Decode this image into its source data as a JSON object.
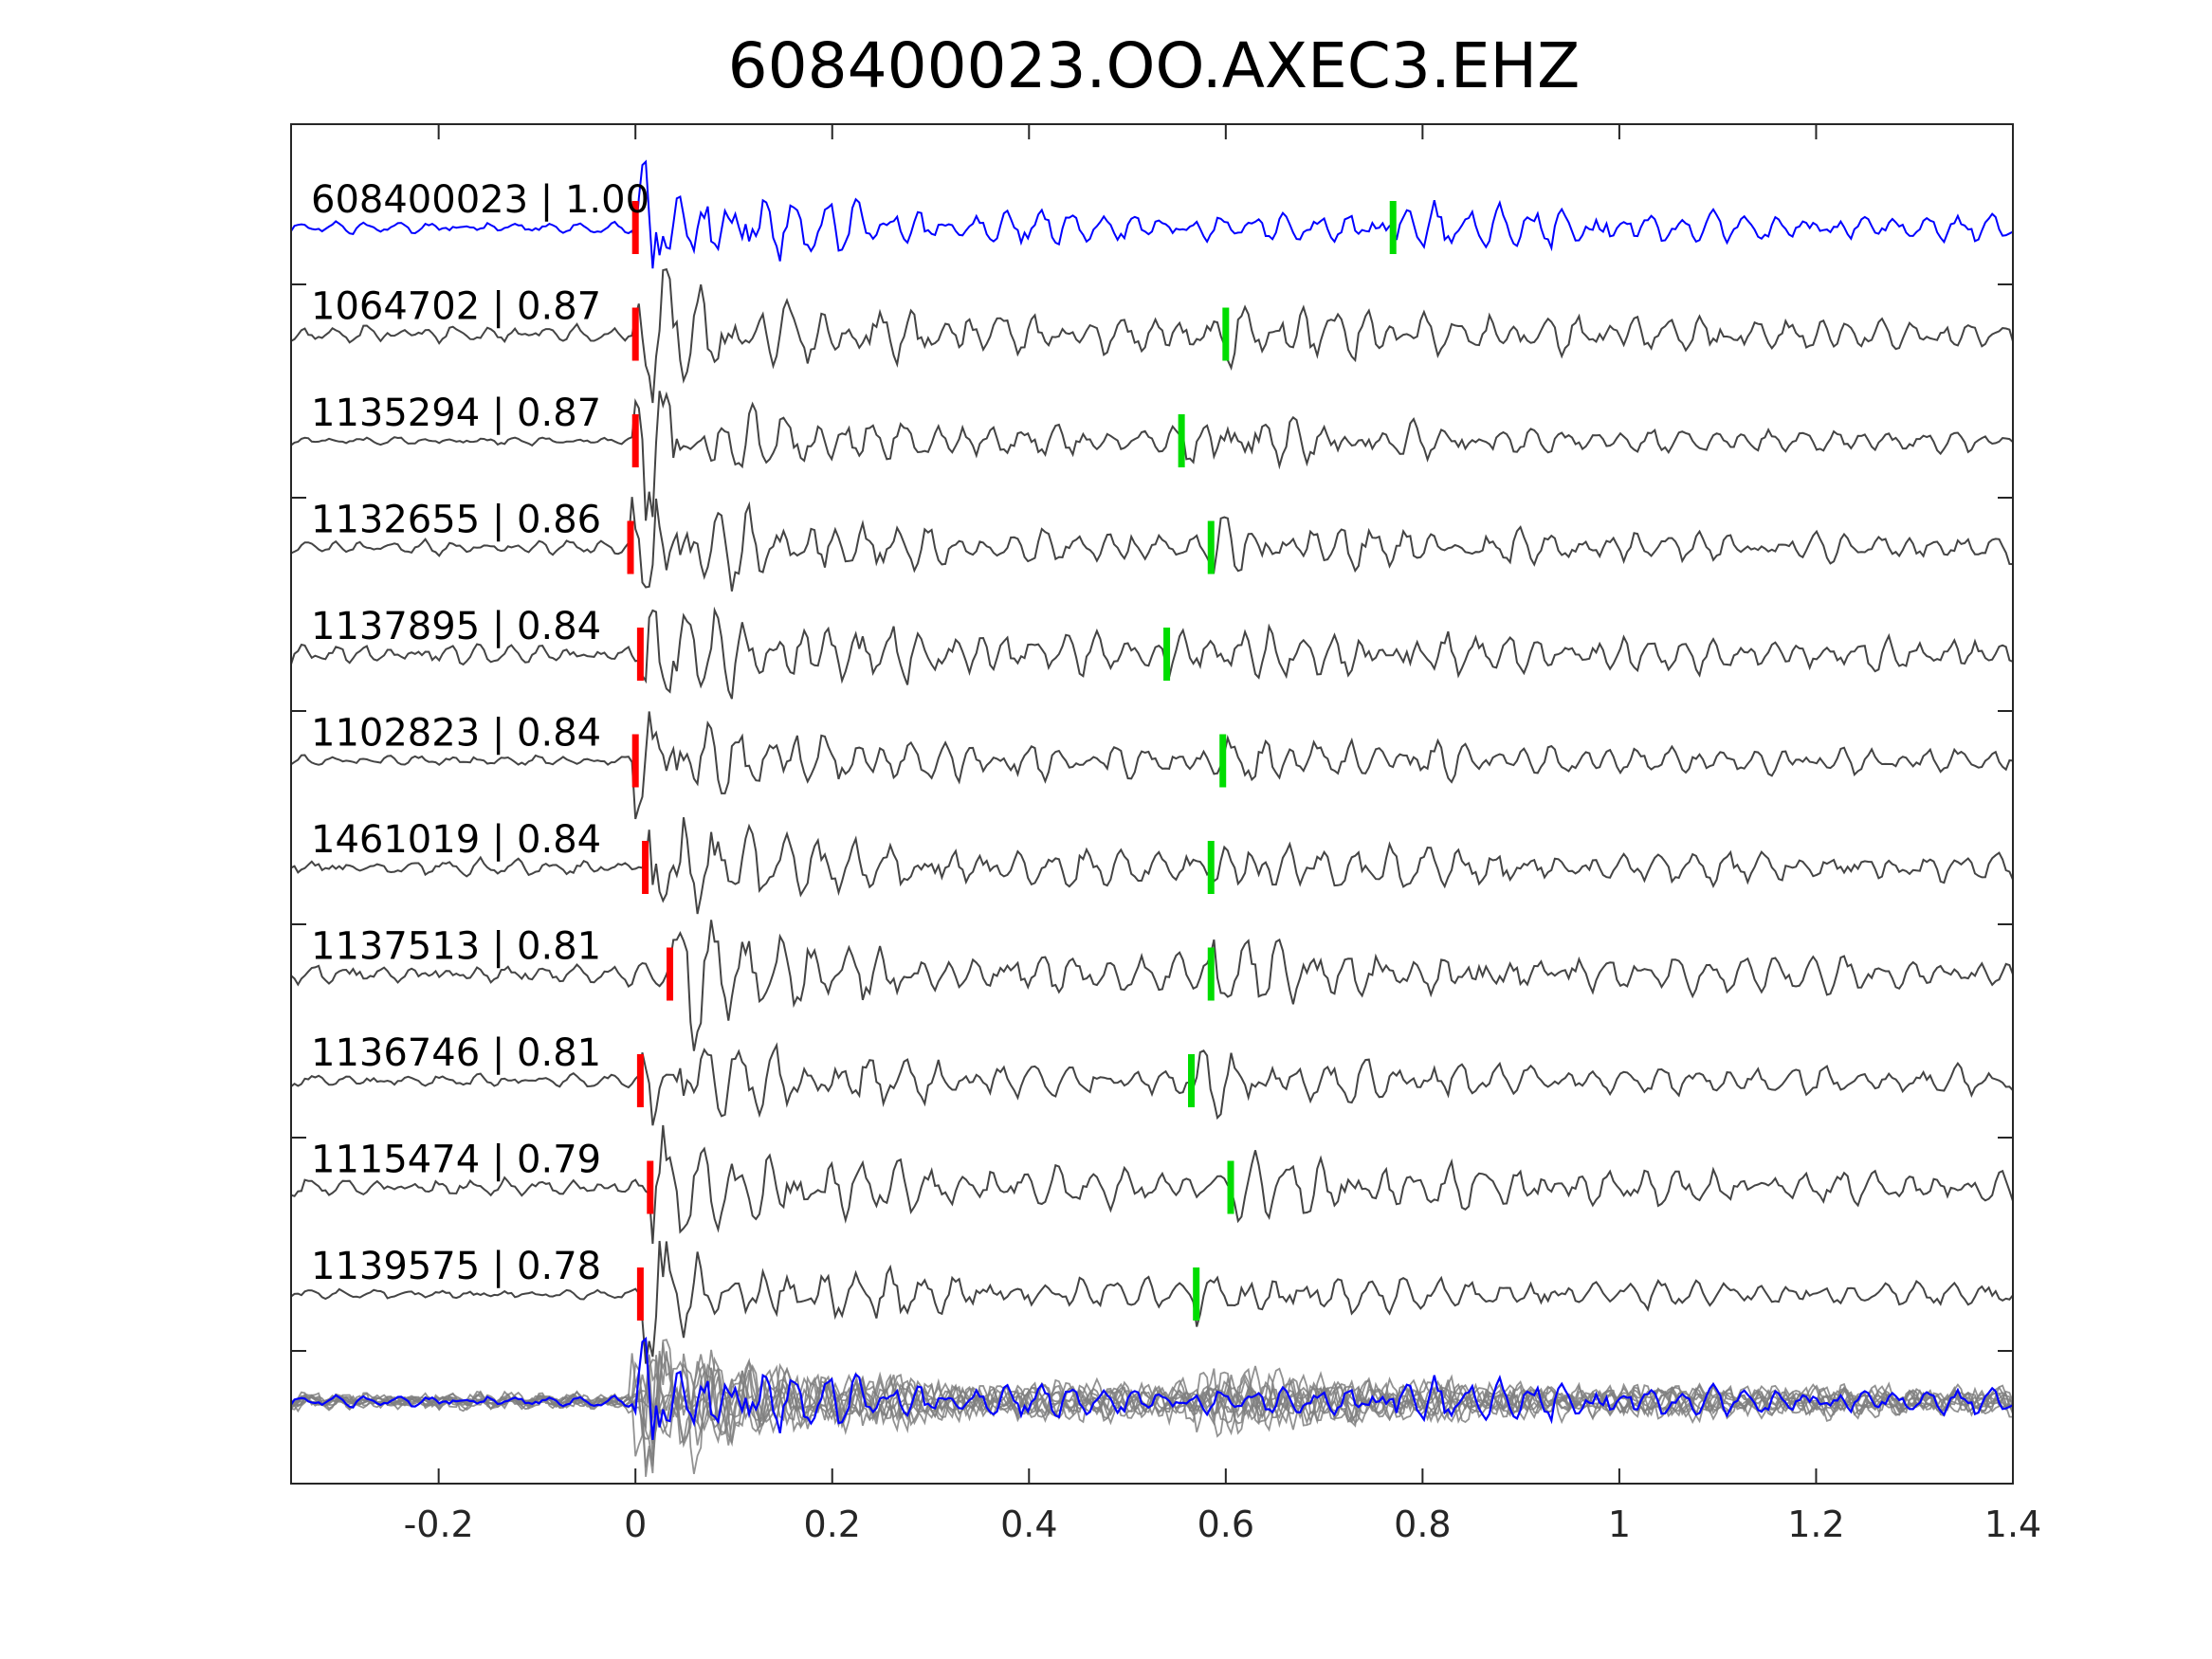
{
  "chart_data": {
    "type": "line",
    "title": "608400023.OO.AXEC3.EHZ",
    "xlabel": "",
    "ylabel": "",
    "xlim": [
      -0.35,
      1.4
    ],
    "xticks": [
      -0.2,
      0,
      0.2,
      0.4,
      0.6,
      0.8,
      1,
      1.2,
      1.4
    ],
    "xtick_labels": [
      "-0.2",
      "0",
      "0.2",
      "0.4",
      "0.6",
      "0.8",
      "1",
      "1.2",
      "1.4"
    ],
    "grid": false,
    "colors": {
      "reference_trace": "#0000ff",
      "template_trace": "#444444",
      "stack_trace": "#7f7f7f",
      "p_pick": "#ff0000",
      "s_pick": "#00dd00",
      "axes": "#262626"
    },
    "series": [
      {
        "id": "608400023",
        "label": "608400023 | 1.00",
        "correlation": 1.0,
        "p_pick": 0.0,
        "s_pick": 0.77,
        "reference": true
      },
      {
        "id": "1064702",
        "label": "1064702 | 0.87",
        "correlation": 0.87,
        "p_pick": 0.0,
        "s_pick": 0.6
      },
      {
        "id": "1135294",
        "label": "1135294 | 0.87",
        "correlation": 0.87,
        "p_pick": 0.0,
        "s_pick": 0.555
      },
      {
        "id": "1132655",
        "label": "1132655 | 0.86",
        "correlation": 0.86,
        "p_pick": -0.005,
        "s_pick": 0.585
      },
      {
        "id": "1137895",
        "label": "1137895 | 0.84",
        "correlation": 0.84,
        "p_pick": 0.005,
        "s_pick": 0.54
      },
      {
        "id": "1102823",
        "label": "1102823 | 0.84",
        "correlation": 0.84,
        "p_pick": 0.0,
        "s_pick": 0.597
      },
      {
        "id": "1461019",
        "label": "1461019 | 0.84",
        "correlation": 0.84,
        "p_pick": 0.01,
        "s_pick": 0.585
      },
      {
        "id": "1137513",
        "label": "1137513 | 0.81",
        "correlation": 0.81,
        "p_pick": 0.035,
        "s_pick": 0.585
      },
      {
        "id": "1136746",
        "label": "1136746 | 0.81",
        "correlation": 0.81,
        "p_pick": 0.005,
        "s_pick": 0.565
      },
      {
        "id": "1115474",
        "label": "1115474 | 0.79",
        "correlation": 0.79,
        "p_pick": 0.015,
        "s_pick": 0.605
      },
      {
        "id": "1139575",
        "label": "1139575 | 0.78",
        "correlation": 0.78,
        "p_pick": 0.005,
        "s_pick": 0.57
      }
    ]
  }
}
